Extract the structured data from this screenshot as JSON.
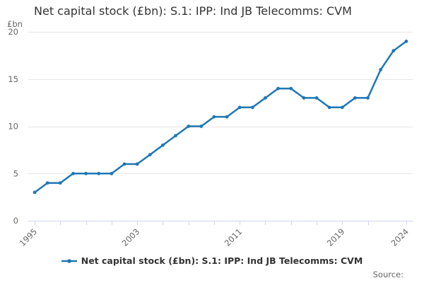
{
  "chart": {
    "title": "Net capital stock (£bn): S.1: IPP: Ind JB Telecomms: CVM",
    "y_axis_unit": "£bn",
    "legend": {
      "label": "Net capital stock (£bn): S.1: IPP: Ind JB Telecomms: CVM"
    },
    "source_label": "Source:",
    "colors": {
      "series": "#1f77b4",
      "grid": "#e6e6e6",
      "axis": "#ccd6eb",
      "label": "#666666",
      "title": "#333333"
    }
  },
  "chart_data": {
    "type": "line",
    "title": "Net capital stock (£bn): S.1: IPP: Ind JB Telecomms: CVM",
    "xlabel": "",
    "ylabel": "£bn",
    "x": [
      1995,
      1996,
      1997,
      1998,
      1999,
      2000,
      2001,
      2002,
      2003,
      2004,
      2005,
      2006,
      2007,
      2008,
      2009,
      2010,
      2011,
      2012,
      2013,
      2014,
      2015,
      2016,
      2017,
      2018,
      2019,
      2020,
      2021,
      2022,
      2023,
      2024
    ],
    "series": [
      {
        "name": "Net capital stock (£bn): S.1: IPP: Ind JB Telecomms: CVM",
        "values": [
          3,
          4,
          4,
          5,
          5,
          5,
          5,
          6,
          6,
          7,
          8,
          9,
          10,
          10,
          11,
          11,
          12,
          12,
          13,
          14,
          14,
          13,
          13,
          12,
          12,
          13,
          13,
          16,
          18,
          19
        ]
      }
    ],
    "ylim": [
      0,
      20
    ],
    "y_ticks": [
      0,
      5,
      10,
      15,
      20
    ],
    "x_tick_labeled_years": [
      "1995",
      "2003",
      "2011",
      "2019",
      "2024"
    ],
    "x_tick_interval_years": 2,
    "x_label_rotation_deg": -45,
    "grid": true,
    "marker": "circle",
    "legend_position": "bottom"
  }
}
